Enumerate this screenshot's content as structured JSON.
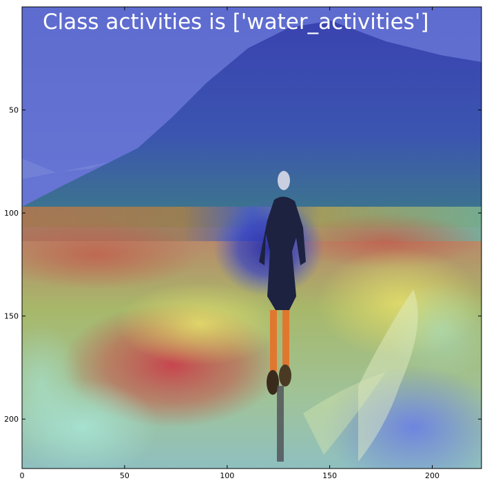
{
  "figure": {
    "title": "Class activities is ['water_activities']",
    "xlim": [
      0,
      224
    ],
    "ylim": [
      0,
      224
    ],
    "x_ticks": [
      0,
      50,
      100,
      150,
      200
    ],
    "y_ticks": [
      50,
      100,
      150,
      200
    ]
  },
  "image": {
    "description_role": "photo of a water skier on a lake with class activation heatmap overlay",
    "colormap": "jet"
  },
  "colors": {
    "sky_blue": "#6b78d8",
    "mountain_blue": "#3e4ab8",
    "heat_red": "#b8474f",
    "heat_yellow": "#d7d35c",
    "heat_green": "#6fbf86",
    "heat_cyan": "#8fd7d0",
    "water_blue": "#6d7fe0"
  }
}
